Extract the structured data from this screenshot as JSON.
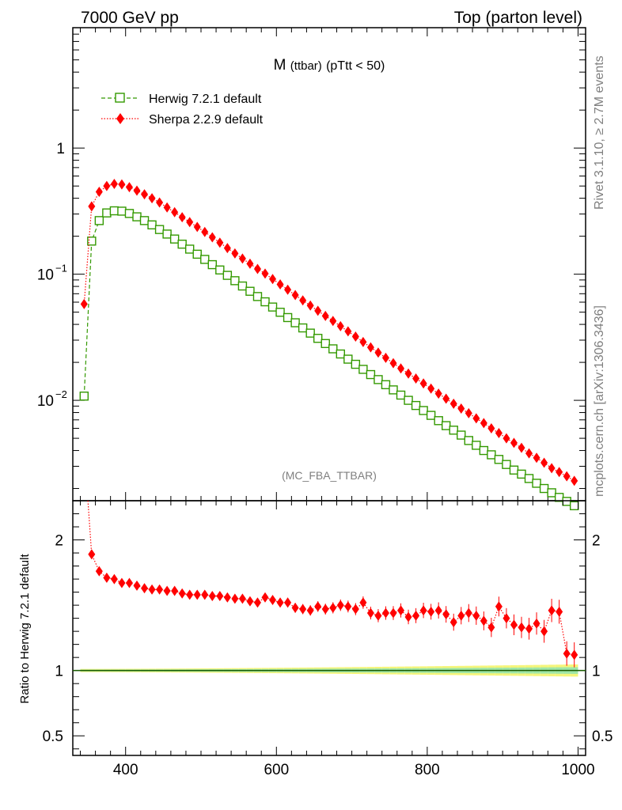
{
  "header": {
    "left": "7000 GeV pp",
    "right": "Top (parton level)"
  },
  "side_labels": {
    "rivet": "Rivet 3.1.10, ≥ 2.7M events",
    "mcplots": "mcplots.cern.ch [arXiv:1306.3436]"
  },
  "analysis_tag": "(MC_FBA_TTBAR)",
  "chart_data": [
    {
      "type": "line",
      "title_main": "M",
      "title_sub": "(ttbar)",
      "title_cut": "(pTtt < 50)",
      "yscale": "log",
      "xlim": [
        330,
        1010
      ],
      "ylim": [
        0.0016,
        9.0
      ],
      "yticks": [
        {
          "value": 1,
          "label": "1"
        },
        {
          "value": 0.1,
          "label": "10",
          "exp": "−1"
        },
        {
          "value": 0.01,
          "label": "10",
          "exp": "−2"
        }
      ],
      "legend_position": "top-left",
      "series": [
        {
          "name": "Herwig 7.2.1 default",
          "color": "#339900",
          "marker": "open-square",
          "linestyle": "dashed",
          "x": [
            345,
            355,
            365,
            375,
            385,
            395,
            405,
            415,
            425,
            435,
            445,
            455,
            465,
            475,
            485,
            495,
            505,
            515,
            525,
            535,
            545,
            555,
            565,
            575,
            585,
            595,
            605,
            615,
            625,
            635,
            645,
            655,
            665,
            675,
            685,
            695,
            705,
            715,
            725,
            735,
            745,
            755,
            765,
            775,
            785,
            795,
            805,
            815,
            825,
            835,
            845,
            855,
            865,
            875,
            885,
            895,
            905,
            915,
            925,
            935,
            945,
            955,
            965,
            975,
            985,
            995
          ],
          "y": [
            0.0108,
            0.183,
            0.266,
            0.306,
            0.318,
            0.316,
            0.303,
            0.285,
            0.266,
            0.246,
            0.226,
            0.208,
            0.19,
            0.173,
            0.158,
            0.144,
            0.131,
            0.119,
            0.108,
            0.0979,
            0.0888,
            0.0806,
            0.0732,
            0.0665,
            0.0604,
            0.0549,
            0.0499,
            0.0453,
            0.0412,
            0.0375,
            0.0341,
            0.031,
            0.0282,
            0.0256,
            0.0233,
            0.0212,
            0.0193,
            0.0176,
            0.016,
            0.0146,
            0.0133,
            0.0121,
            0.011,
            0.01,
            0.0091,
            0.0083,
            0.0076,
            0.0069,
            0.0063,
            0.0058,
            0.0053,
            0.0048,
            0.0044,
            0.004,
            0.0037,
            0.0034,
            0.0031,
            0.0028,
            0.0026,
            0.0024,
            0.0022,
            0.002,
            0.00185,
            0.0017,
            0.00158,
            0.00146
          ]
        },
        {
          "name": "Sherpa 2.2.9 default",
          "color": "#ff0000",
          "marker": "filled-diamond",
          "linestyle": "dotted",
          "x": [
            345,
            355,
            365,
            375,
            385,
            395,
            405,
            415,
            425,
            435,
            445,
            455,
            465,
            475,
            485,
            495,
            505,
            515,
            525,
            535,
            545,
            555,
            565,
            575,
            585,
            595,
            605,
            615,
            625,
            635,
            645,
            655,
            665,
            675,
            685,
            695,
            705,
            715,
            725,
            735,
            745,
            755,
            765,
            775,
            785,
            795,
            805,
            815,
            825,
            835,
            845,
            855,
            865,
            875,
            885,
            895,
            905,
            915,
            925,
            935,
            945,
            955,
            965,
            975,
            985,
            995
          ],
          "y": [
            0.058,
            0.345,
            0.45,
            0.5,
            0.52,
            0.515,
            0.49,
            0.46,
            0.43,
            0.4,
            0.37,
            0.338,
            0.31,
            0.283,
            0.259,
            0.237,
            0.216,
            0.196,
            0.178,
            0.161,
            0.146,
            0.133,
            0.121,
            0.11,
            0.101,
            0.0915,
            0.083,
            0.0753,
            0.0683,
            0.062,
            0.0564,
            0.0513,
            0.0467,
            0.0426,
            0.0387,
            0.0352,
            0.032,
            0.029,
            0.0263,
            0.0239,
            0.0217,
            0.0197,
            0.0179,
            0.0163,
            0.0149,
            0.0136,
            0.0124,
            0.0113,
            0.0103,
            0.0094,
            0.0086,
            0.0079,
            0.0072,
            0.0066,
            0.006,
            0.0055,
            0.005,
            0.0046,
            0.0042,
            0.0038,
            0.0035,
            0.0032,
            0.0029,
            0.0027,
            0.0025,
            0.0023
          ]
        }
      ]
    },
    {
      "type": "line",
      "ylabel": "Ratio to Herwig 7.2.1 default",
      "xlim": [
        330,
        1010
      ],
      "ylim": [
        0.35,
        2.3
      ],
      "xticks": [
        {
          "value": 400,
          "label": "400"
        },
        {
          "value": 600,
          "label": "600"
        },
        {
          "value": 800,
          "label": "800"
        },
        {
          "value": 1000,
          "label": "1000"
        }
      ],
      "yticks": [
        {
          "value": 2,
          "label": "2"
        },
        {
          "value": 1,
          "label": "1"
        },
        {
          "value": 0.5,
          "label": "0.5"
        }
      ],
      "reference_line": 1.0,
      "series": [
        {
          "name": "Sherpa 2.2.9 default",
          "color": "#ff0000",
          "x": [
            355,
            365,
            375,
            385,
            395,
            405,
            415,
            425,
            435,
            445,
            455,
            465,
            475,
            485,
            495,
            505,
            515,
            525,
            535,
            545,
            555,
            565,
            575,
            585,
            595,
            605,
            615,
            625,
            635,
            645,
            655,
            665,
            675,
            685,
            695,
            705,
            715,
            725,
            735,
            745,
            755,
            765,
            775,
            785,
            795,
            805,
            815,
            825,
            835,
            845,
            855,
            865,
            875,
            885,
            895,
            905,
            915,
            925,
            935,
            945,
            955,
            965,
            975,
            985,
            995
          ],
          "y": [
            1.89,
            1.76,
            1.71,
            1.7,
            1.67,
            1.67,
            1.65,
            1.63,
            1.62,
            1.62,
            1.61,
            1.61,
            1.59,
            1.58,
            1.58,
            1.58,
            1.57,
            1.57,
            1.56,
            1.55,
            1.55,
            1.53,
            1.52,
            1.56,
            1.54,
            1.52,
            1.52,
            1.48,
            1.47,
            1.46,
            1.49,
            1.47,
            1.48,
            1.5,
            1.49,
            1.47,
            1.52,
            1.44,
            1.42,
            1.44,
            1.44,
            1.46,
            1.41,
            1.42,
            1.46,
            1.45,
            1.46,
            1.43,
            1.37,
            1.42,
            1.44,
            1.42,
            1.38,
            1.33,
            1.49,
            1.4,
            1.35,
            1.33,
            1.32,
            1.36,
            1.3,
            1.46,
            1.45,
            1.13,
            1.12
          ]
        }
      ]
    }
  ]
}
